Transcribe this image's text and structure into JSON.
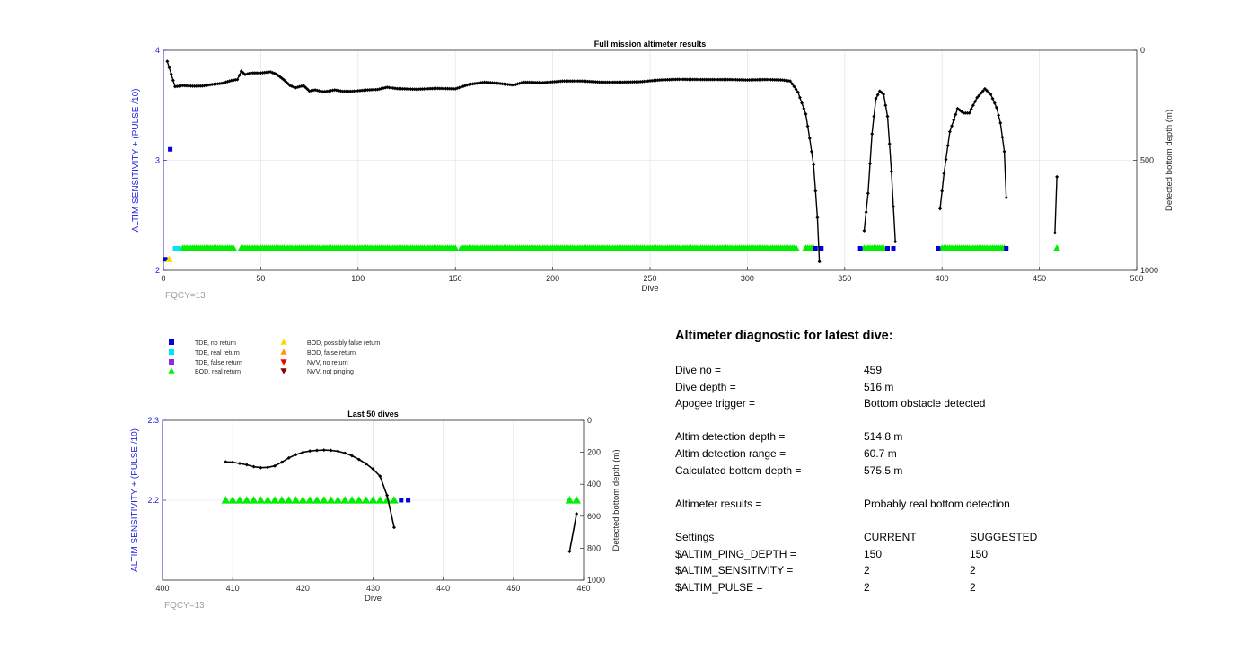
{
  "colors": {
    "tde_no_return": "#0000dd",
    "tde_real_return": "#00e5ee",
    "tde_false_return": "#8a2be2",
    "bod_real_return": "#00ee00",
    "bod_possibly_false": "#ffd700",
    "bod_false_return": "#ff9900",
    "nvv_no_return": "#ee0000",
    "nvv_not_pinging": "#8b0000",
    "left_axis": "#2222dd",
    "depth_line": "#000000"
  },
  "legend": [
    {
      "label": "TDE, no return",
      "marker": "square",
      "color": "#0000dd"
    },
    {
      "label": "TDE, real return",
      "marker": "square",
      "color": "#00e5ee"
    },
    {
      "label": "TDE, false return",
      "marker": "square",
      "color": "#8a2be2"
    },
    {
      "label": "BOD, real return",
      "marker": "triangle-up",
      "color": "#00ee00"
    },
    {
      "label": "BOD, possibly false return",
      "marker": "triangle-up",
      "color": "#ffd700"
    },
    {
      "label": "BOD, false return",
      "marker": "triangle-up",
      "color": "#ff9900"
    },
    {
      "label": "NVV, no return",
      "marker": "triangle-down",
      "color": "#ee0000"
    },
    {
      "label": "NVV, not pinging",
      "marker": "triangle-down",
      "color": "#8b0000"
    }
  ],
  "chart_data": [
    {
      "type": "scatter",
      "title": "Full mission altimeter results",
      "xlabel": "Dive",
      "ylabel": "ALTIM SENSITIVITY + (PULSE /10)",
      "y2label": "Detected bottom depth (m)",
      "note": "FQCY=13",
      "xlim": [
        0,
        500
      ],
      "ylim": [
        2,
        4
      ],
      "y2lim": [
        1000,
        0
      ],
      "y2_reversed": true,
      "xticks": [
        0,
        50,
        100,
        150,
        200,
        250,
        300,
        350,
        400,
        450,
        500
      ],
      "yticks": [
        2,
        3,
        4
      ],
      "y2ticks": [
        0,
        500,
        1000
      ],
      "grid": true,
      "markers": {
        "tde_no_return": [
          [
            1,
            2.1
          ],
          [
            3.5,
            3.1
          ],
          [
            335,
            2.2
          ],
          [
            338,
            2.2
          ],
          [
            358,
            2.2
          ],
          [
            372,
            2.2
          ],
          [
            375,
            2.2
          ],
          [
            398,
            2.2
          ],
          [
            433,
            2.2
          ]
        ],
        "tde_real_return": [
          [
            6,
            2.2
          ],
          [
            8,
            2.2
          ]
        ],
        "bod_possibly_false": [
          [
            3,
            2.1
          ]
        ],
        "bod_real_return_ranges": [
          [
            10,
            36
          ],
          [
            40,
            150
          ],
          [
            153,
            325
          ],
          [
            330,
            334
          ],
          [
            360,
            370
          ],
          [
            400,
            432
          ],
          [
            459,
            459
          ]
        ]
      },
      "depth_series": [
        {
          "segment": "early",
          "points": [
            [
              2,
              50
            ],
            [
              6,
              165
            ],
            [
              10,
              160
            ],
            [
              15,
              163
            ],
            [
              20,
              162
            ],
            [
              25,
              155
            ],
            [
              30,
              150
            ],
            [
              35,
              137
            ],
            [
              38,
              133
            ],
            [
              40,
              95
            ],
            [
              42,
              110
            ],
            [
              45,
              103
            ],
            [
              50,
              103
            ],
            [
              55,
              98
            ],
            [
              58,
              108
            ],
            [
              62,
              135
            ],
            [
              65,
              160
            ],
            [
              68,
              170
            ],
            [
              72,
              160
            ],
            [
              75,
              185
            ],
            [
              78,
              180
            ],
            [
              82,
              188
            ],
            [
              85,
              185
            ],
            [
              88,
              180
            ],
            [
              92,
              186
            ],
            [
              97,
              186
            ],
            [
              105,
              180
            ],
            [
              110,
              178
            ],
            [
              115,
              168
            ],
            [
              120,
              174
            ],
            [
              130,
              177
            ],
            [
              140,
              173
            ],
            [
              150,
              175
            ],
            [
              157,
              155
            ],
            [
              165,
              145
            ],
            [
              172,
              150
            ],
            [
              180,
              158
            ],
            [
              185,
              145
            ],
            [
              195,
              147
            ],
            [
              205,
              140
            ],
            [
              215,
              140
            ],
            [
              225,
              145
            ],
            [
              235,
              145
            ],
            [
              245,
              143
            ],
            [
              255,
              135
            ],
            [
              265,
              132
            ],
            [
              275,
              133
            ],
            [
              290,
              133
            ],
            [
              300,
              135
            ],
            [
              310,
              133
            ],
            [
              318,
              135
            ],
            [
              322,
              140
            ],
            [
              326,
              190
            ],
            [
              330,
              290
            ],
            [
              332,
              400
            ],
            [
              334,
              520
            ],
            [
              336,
              760
            ],
            [
              337,
              960
            ]
          ]
        },
        {
          "segment": "hump1",
          "points": [
            [
              360,
              820
            ],
            [
              362,
              650
            ],
            [
              364,
              380
            ],
            [
              366,
              220
            ],
            [
              368,
              185
            ],
            [
              370,
              200
            ],
            [
              372,
              300
            ],
            [
              374,
              550
            ],
            [
              376,
              870
            ]
          ]
        },
        {
          "segment": "hump2",
          "points": [
            [
              399,
              720
            ],
            [
              401,
              560
            ],
            [
              404,
              370
            ],
            [
              408,
              265
            ],
            [
              411,
              285
            ],
            [
              414,
              285
            ],
            [
              418,
              215
            ],
            [
              422,
              175
            ],
            [
              425,
              200
            ],
            [
              428,
              260
            ],
            [
              430,
              330
            ],
            [
              432,
              460
            ],
            [
              433,
              670
            ]
          ]
        },
        {
          "segment": "latest",
          "points": [
            [
              458,
              830
            ],
            [
              459,
              575
            ]
          ]
        }
      ]
    },
    {
      "type": "scatter",
      "title": "Last 50 dives",
      "xlabel": "Dive",
      "ylabel": "ALTIM SENSITIVITY + (PULSE /10)",
      "y2label": "Detected bottom depth (m)",
      "note": "FQCY=13",
      "xlim": [
        400,
        460
      ],
      "ylim": [
        2.1,
        2.3
      ],
      "y2lim": [
        1000,
        0
      ],
      "y2_reversed": true,
      "xticks": [
        400,
        410,
        420,
        430,
        440,
        450,
        460
      ],
      "yticks": [
        2.2,
        2.3
      ],
      "y2ticks": [
        0,
        200,
        400,
        600,
        800,
        1000
      ],
      "grid": true,
      "markers": {
        "bod_real_return": [
          409,
          410,
          411,
          412,
          413,
          414,
          415,
          416,
          417,
          418,
          419,
          420,
          421,
          422,
          423,
          424,
          425,
          426,
          427,
          428,
          429,
          430,
          431,
          432,
          433,
          458,
          459
        ],
        "tde_no_return": [
          434,
          435
        ]
      },
      "depth_series": [
        {
          "segment": "hump2",
          "points": [
            [
              409,
              260
            ],
            [
              410,
              262
            ],
            [
              411,
              270
            ],
            [
              412,
              278
            ],
            [
              413,
              290
            ],
            [
              414,
              296
            ],
            [
              415,
              294
            ],
            [
              416,
              285
            ],
            [
              417,
              262
            ],
            [
              418,
              235
            ],
            [
              419,
              215
            ],
            [
              420,
              200
            ],
            [
              421,
              192
            ],
            [
              422,
              188
            ],
            [
              423,
              186
            ],
            [
              424,
              188
            ],
            [
              425,
              193
            ],
            [
              426,
              205
            ],
            [
              427,
              222
            ],
            [
              428,
              245
            ],
            [
              429,
              272
            ],
            [
              430,
              305
            ],
            [
              431,
              350
            ],
            [
              432,
              470
            ],
            [
              433,
              670
            ]
          ]
        },
        {
          "segment": "latest",
          "points": [
            [
              458,
              820
            ],
            [
              459,
              585
            ]
          ]
        }
      ]
    }
  ],
  "diagnostic": {
    "title": "Altimeter diagnostic for latest dive:",
    "rows": [
      {
        "label": "Dive no =",
        "value": "459"
      },
      {
        "label": "Dive depth =",
        "value": "516 m"
      },
      {
        "label": "Apogee trigger =",
        "value": "Bottom obstacle detected"
      },
      {
        "label": "Altim detection depth =",
        "value": "514.8 m"
      },
      {
        "label": "Altim detection range =",
        "value": "60.7 m"
      },
      {
        "label": "Calculated bottom depth =",
        "value": "575.5 m"
      },
      {
        "label": "Altimeter results =",
        "value": "Probably real bottom detection"
      }
    ],
    "settings_header": {
      "label": "Settings",
      "current": "CURRENT",
      "suggested": "SUGGESTED"
    },
    "settings": [
      {
        "name": "$ALTIM_PING_DEPTH =",
        "current": "150",
        "suggested": "150"
      },
      {
        "name": "$ALTIM_SENSITIVITY =",
        "current": "2",
        "suggested": "2"
      },
      {
        "name": "$ALTIM_PULSE =",
        "current": "2",
        "suggested": "2"
      }
    ]
  }
}
